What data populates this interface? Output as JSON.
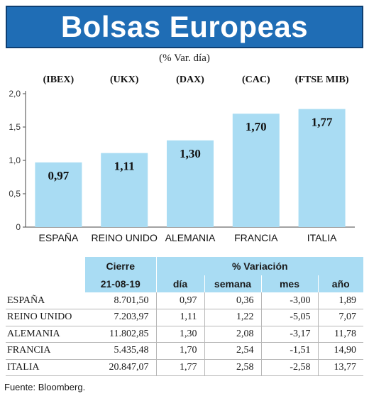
{
  "header": {
    "title": "Bolsas Europeas",
    "subtitle": "(% Var. día)"
  },
  "chart_data": {
    "type": "bar",
    "categories": [
      "ESPAÑA",
      "REINO UNIDO",
      "ALEMANIA",
      "FRANCIA",
      "ITALIA"
    ],
    "indices": [
      "(IBEX)",
      "(UKX)",
      "(DAX)",
      "(CAC)",
      "(FTSE MIB)"
    ],
    "values": [
      0.97,
      1.11,
      1.3,
      1.7,
      1.77
    ],
    "value_labels": [
      "0,97",
      "1,11",
      "1,30",
      "1,70",
      "1,77"
    ],
    "yticks": [
      "0",
      "0,5",
      "1,0",
      "1,5",
      "2,0"
    ],
    "ylim": [
      0,
      2.0
    ],
    "bar_color": "#a9dcf3"
  },
  "table": {
    "header_cierre": "Cierre",
    "header_date": "21-08-19",
    "header_variacion": "% Variación",
    "col_dia": "día",
    "col_semana": "semana",
    "col_mes": "mes",
    "col_ano": "año",
    "rows": [
      {
        "name": "ESPAÑA",
        "cierre": "8.701,50",
        "dia": "0,97",
        "semana": "0,36",
        "mes": "-3,00",
        "ano": "1,89"
      },
      {
        "name": "REINO UNIDO",
        "cierre": "7.203,97",
        "dia": "1,11",
        "semana": "1,22",
        "mes": "-5,05",
        "ano": "7,07"
      },
      {
        "name": "ALEMANIA",
        "cierre": "11.802,85",
        "dia": "1,30",
        "semana": "2,08",
        "mes": "-3,17",
        "ano": "11,78"
      },
      {
        "name": "FRANCIA",
        "cierre": "5.435,48",
        "dia": "1,70",
        "semana": "2,54",
        "mes": "-1,51",
        "ano": "14,90"
      },
      {
        "name": "ITALIA",
        "cierre": "20.847,07",
        "dia": "1,77",
        "semana": "2,58",
        "mes": "-2,58",
        "ano": "13,77"
      }
    ]
  },
  "source": "Fuente: Bloomberg.",
  "colors": {
    "title_bg": "#1f6db5",
    "header_bg": "#a9dcf3"
  }
}
